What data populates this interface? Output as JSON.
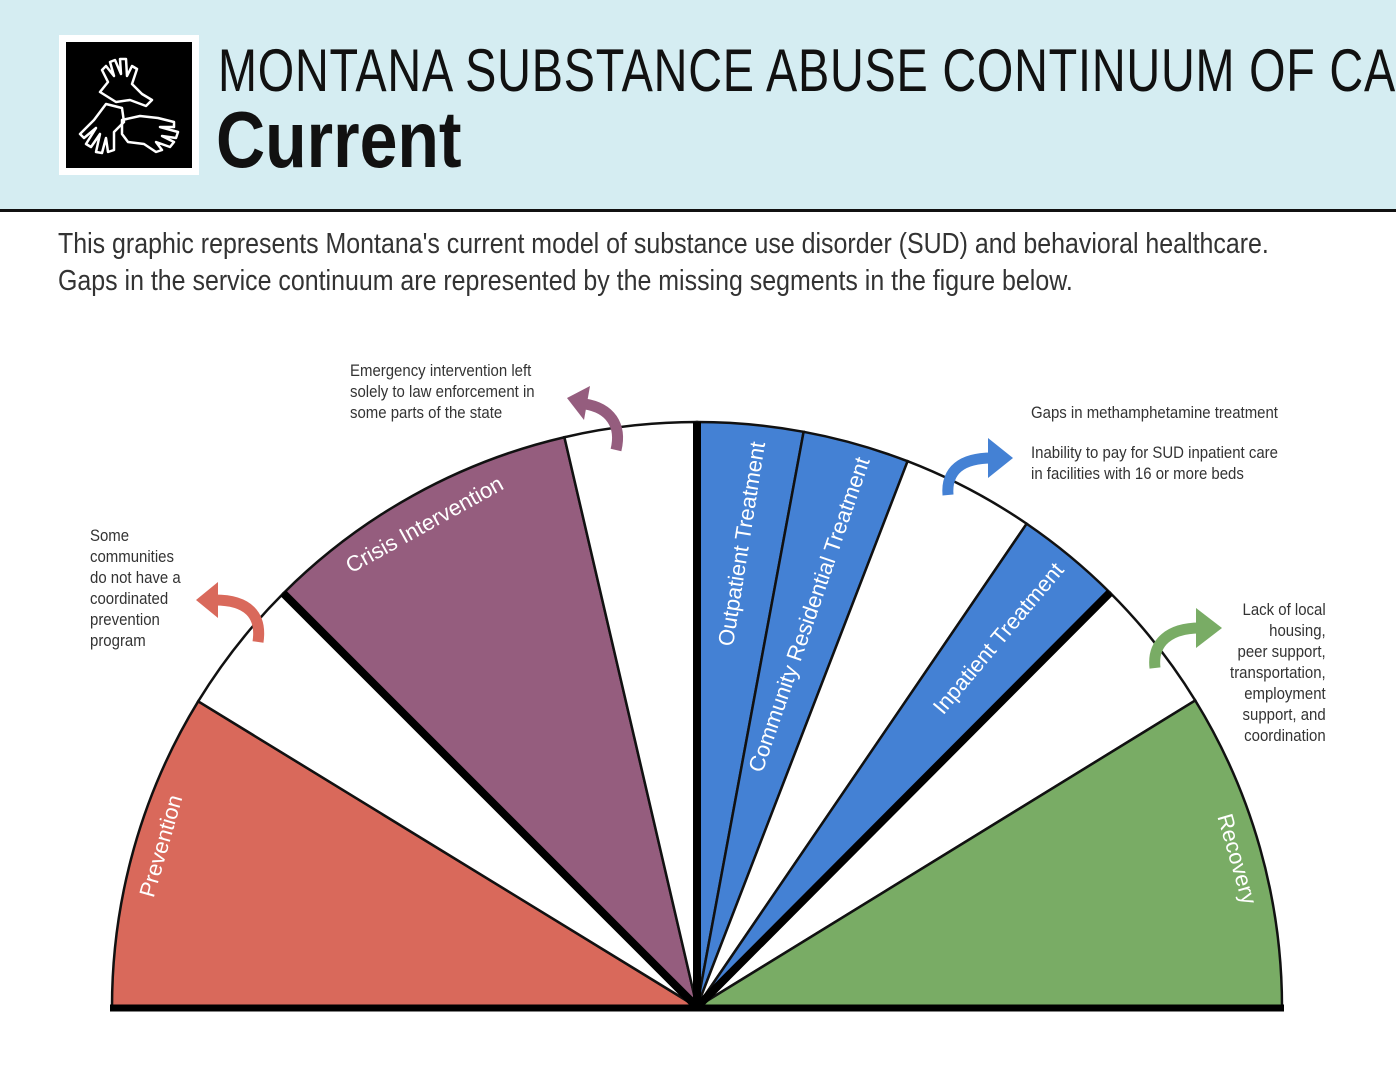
{
  "header": {
    "title": "MONTANA SUBSTANCE ABUSE CONTINUUM OF CARE",
    "subtitle": "Current",
    "logo_icon": "hands-together-icon"
  },
  "intro": {
    "line1": "This graphic represents Montana's current model of substance use disorder (SUD) and behavioral healthcare.",
    "line2": "Gaps in the service continuum are represented by the missing segments in the figure below."
  },
  "segments": {
    "prevention": {
      "label": "Prevention",
      "color": "#d9695b"
    },
    "crisis": {
      "label": "Crisis Intervention",
      "color": "#955d7e"
    },
    "outpatient": {
      "label": "Outpatient Treatment",
      "color": "#4481d4"
    },
    "community": {
      "label": "Community Residential Treatment",
      "color": "#4481d4"
    },
    "inpatient": {
      "label": "Inpatient Treatment",
      "color": "#4481d4"
    },
    "recovery": {
      "label": "Recovery",
      "color": "#79ac65"
    }
  },
  "notes": {
    "prevention_gap": [
      "Some",
      "communities",
      "do not have a",
      "coordinated",
      "prevention",
      "program"
    ],
    "crisis_gap": [
      "Emergency intervention left",
      "solely to law enforcement in",
      "some parts of the state"
    ],
    "treatment_gap_1": "Gaps in methamphetamine treatment",
    "treatment_gap_2": [
      "Inability to pay for SUD inpatient care",
      "in facilities with 16 or more beds"
    ],
    "recovery_gap": [
      "Lack of local",
      "housing,",
      "peer support,",
      "transportation,",
      "employment",
      "support, and",
      "coordination"
    ]
  }
}
